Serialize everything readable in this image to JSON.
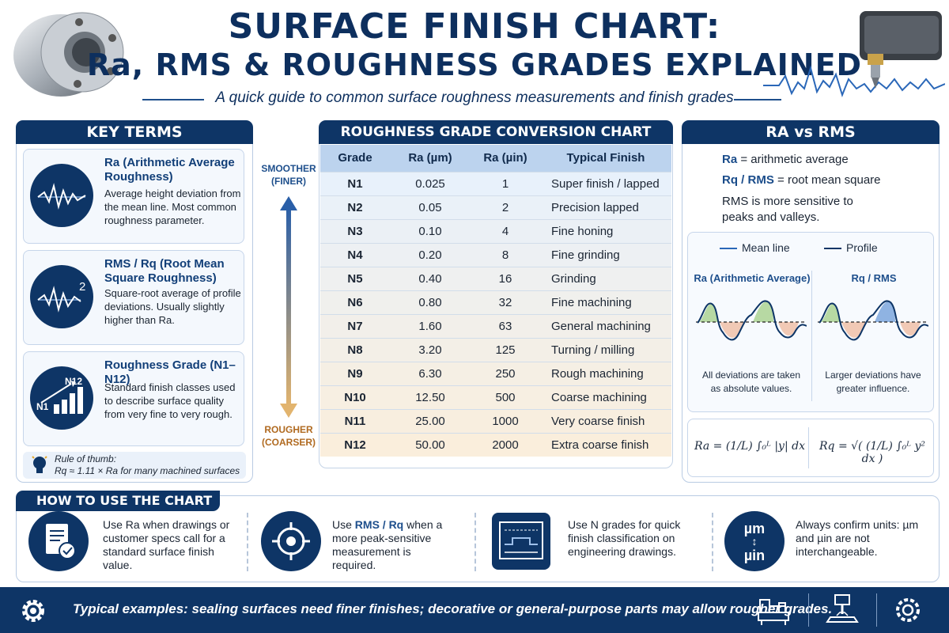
{
  "header": {
    "title_line1": "SURFACE FINISH CHART:",
    "title_line2": "Ra, RMS & ROUGHNESS GRADES EXPLAINED",
    "subtitle": "A quick guide to common surface roughness measurements and finish grades"
  },
  "key_terms": {
    "heading": "KEY TERMS",
    "items": [
      {
        "title": "Ra (Arithmetic Average Roughness)",
        "text": "Average height deviation from the mean line. Most common roughness parameter.",
        "icon": "waveform-icon"
      },
      {
        "title": "RMS / Rq (Root Mean Square Roughness)",
        "text": "Square-root average of profile deviations. Usually slightly higher than Ra.",
        "icon": "squared-waveform-icon"
      },
      {
        "title": "Roughness Grade (N1–N12)",
        "text": "Standard finish classes used to describe surface quality from very fine to very rough.",
        "icon": "bar-chart-icon",
        "icon_labels": [
          "N1",
          "N12"
        ]
      }
    ],
    "rule_of_thumb_label": "Rule of thumb:",
    "rule_of_thumb_text": "Rq ≈ 1.11 × Ra for many machined surfaces"
  },
  "conversion_chart": {
    "heading": "ROUGHNESS GRADE CONVERSION CHART",
    "columns": [
      "Grade",
      "Ra (µm)",
      "Ra (µin)",
      "Typical Finish"
    ],
    "rows": [
      [
        "N1",
        "0.025",
        "1",
        "Super finish / lapped"
      ],
      [
        "N2",
        "0.05",
        "2",
        "Precision lapped"
      ],
      [
        "N3",
        "0.10",
        "4",
        "Fine honing"
      ],
      [
        "N4",
        "0.20",
        "8",
        "Fine grinding"
      ],
      [
        "N5",
        "0.40",
        "16",
        "Grinding"
      ],
      [
        "N6",
        "0.80",
        "32",
        "Fine machining"
      ],
      [
        "N7",
        "1.60",
        "63",
        "General machining"
      ],
      [
        "N8",
        "3.20",
        "125",
        "Turning / milling"
      ],
      [
        "N9",
        "6.30",
        "250",
        "Rough machining"
      ],
      [
        "N10",
        "12.50",
        "500",
        "Coarse machining"
      ],
      [
        "N11",
        "25.00",
        "1000",
        "Very coarse finish"
      ],
      [
        "N12",
        "50.00",
        "2000",
        "Extra coarse finish"
      ]
    ],
    "smoother_label_1": "SMOOTHER",
    "smoother_label_2": "(FINER)",
    "rougher_label_1": "ROUGHER",
    "rougher_label_2": "(COARSER)"
  },
  "ra_vs_rms": {
    "heading": "RA vs RMS",
    "line1_term": "Ra",
    "line1_def": "= arithmetic average",
    "line2_term": "Rq / RMS",
    "line2_def": "= root mean square",
    "note": "RMS is more sensitive to peaks and valleys.",
    "legend_mean": "Mean line",
    "legend_profile": "Profile",
    "left_label": "Ra (Arithmetic Average)",
    "right_label": "Rq / RMS",
    "left_caption": "All deviations are taken as absolute values.",
    "right_caption": "Larger deviations have greater influence.",
    "formula_ra": "Ra = (1/L) ∫₀ᴸ |y| dx",
    "formula_rq": "Rq = √( (1/L) ∫₀ᴸ y² dx )"
  },
  "how_to_use": {
    "heading": "HOW TO USE THE CHART",
    "items": [
      {
        "text": "Use Ra when drawings or customer specs call for a standard surface finish value.",
        "icon": "document-check-icon"
      },
      {
        "text_pre": "Use ",
        "text_em": "RMS / Rq",
        "text_post": " when a more peak-sensitive measurement is required.",
        "icon": "crosshair-icon"
      },
      {
        "text": "Use N grades for quick finish classification on engineering drawings.",
        "icon": "drawing-icon"
      },
      {
        "text": "Always confirm units: µm and µin are not interchangeable.",
        "icon": "units-icon",
        "icon_top": "µm",
        "icon_bottom": "µin"
      }
    ]
  },
  "footer": {
    "text": "Typical examples: sealing surfaces need finer finishes; decorative or general-purpose parts may allow rougher grades."
  },
  "colors": {
    "navy": "#0e3566",
    "accent": "#1e4f8c",
    "table_header": "#bcd3ee"
  }
}
